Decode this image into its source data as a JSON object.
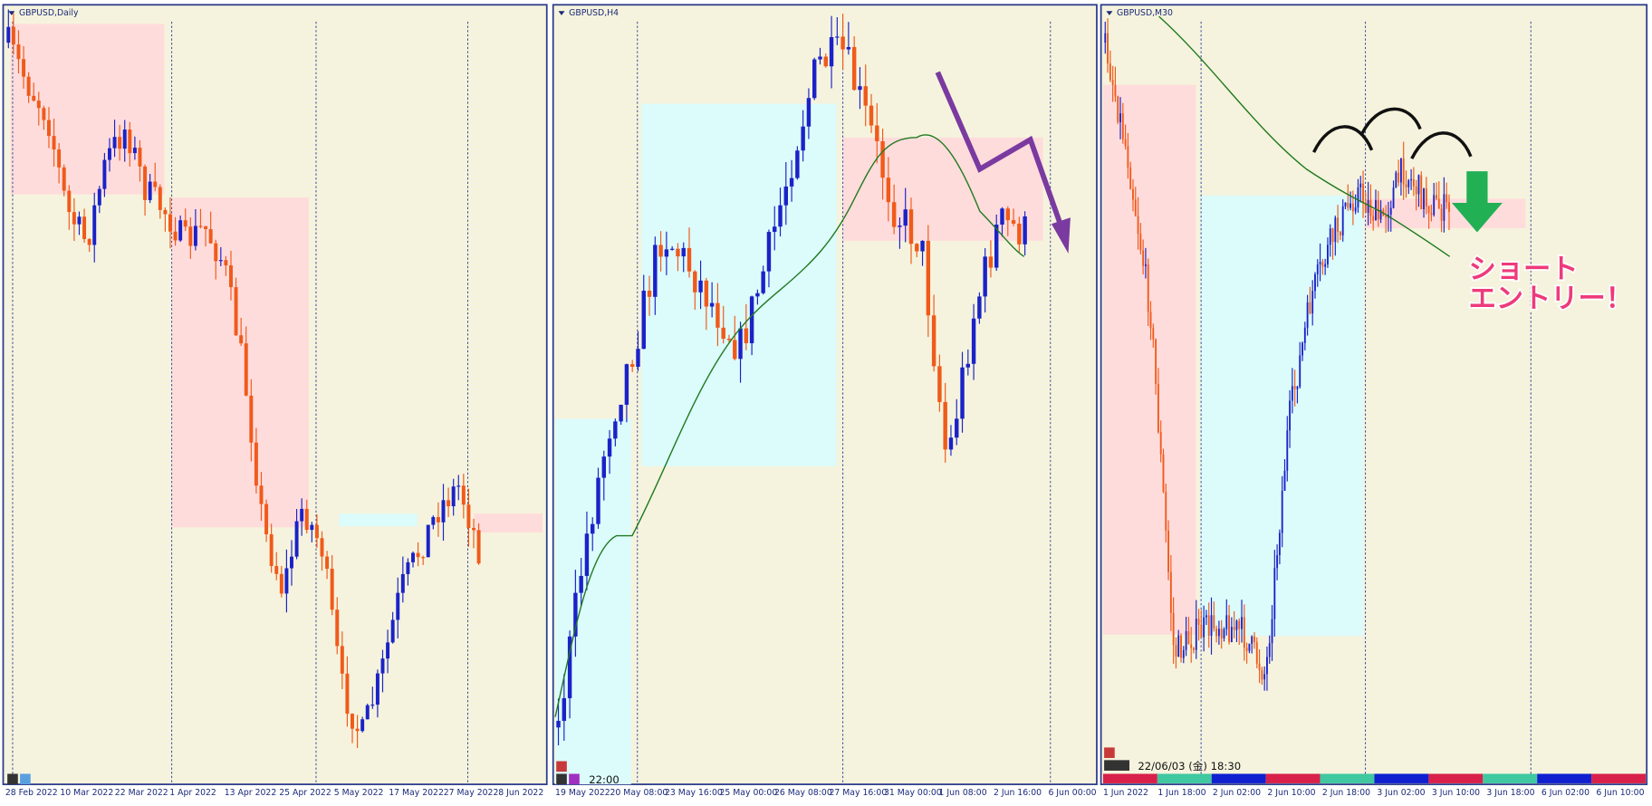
{
  "panels": [
    {
      "title": "GBPUSD,Daily",
      "x_labels": [
        "28 Feb 2022",
        "10 Mar 2022",
        "22 Mar 2022",
        "1 Apr 2022",
        "13 Apr 2022",
        "25 Apr 2022",
        "5 May 2022",
        "17 May 2022",
        "27 May 2022",
        "8 Jun 2022"
      ]
    },
    {
      "title": "GBPUSD,H4",
      "x_labels": [
        "19 May 2022",
        "20 May 08:00",
        "23 May 16:00",
        "25 May 00:00",
        "26 May 08:00",
        "27 May 16:00",
        "31 May 00:00",
        "1 Jun 08:00",
        "2 Jun 16:00",
        "6 Jun 00:00"
      ],
      "time": "22:00"
    },
    {
      "title": "GBPUSD,M30",
      "x_labels": [
        "1 Jun 2022",
        "1 Jun 18:00",
        "2 Jun 02:00",
        "2 Jun 10:00",
        "2 Jun 18:00",
        "3 Jun 02:00",
        "3 Jun 10:00",
        "3 Jun 18:00",
        "6 Jun 02:00",
        "6 Jun 10:00"
      ],
      "status": "22/06/03 (金) 18:30",
      "annotation": [
        "ショート",
        "エントリー！"
      ]
    }
  ]
}
